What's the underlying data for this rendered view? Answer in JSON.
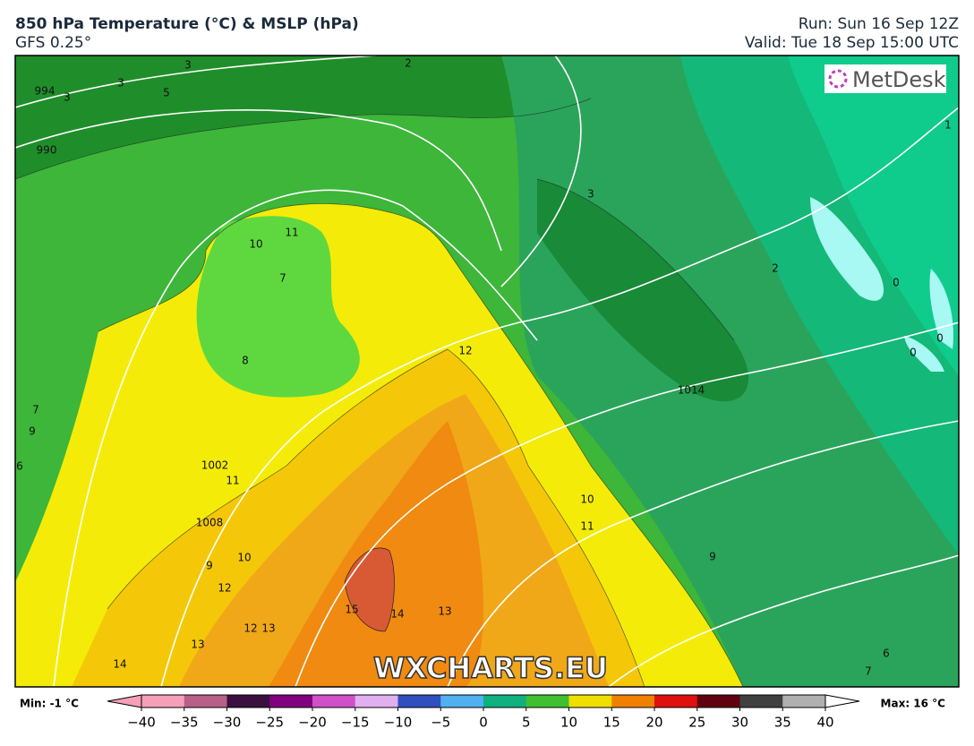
{
  "header": {
    "title": "850 hPa Temperature (°C) & MSLP (hPa)",
    "model": "GFS 0.25°",
    "run": "Run: Sun 16 Sep 12Z",
    "valid": "Valid: Tue 18 Sep 15:00 UTC"
  },
  "map": {
    "logo": "MetDesk",
    "watermark": "WXCHARTS.EU",
    "labels": [
      "994",
      "990",
      "1014",
      "1008",
      "1002",
      "3",
      "3",
      "2",
      "3",
      "5",
      "10",
      "11",
      "7",
      "8",
      "12",
      "9",
      "7",
      "6",
      "11",
      "9",
      "10",
      "12",
      "12",
      "13",
      "13",
      "14",
      "13",
      "14",
      "15",
      "10",
      "11",
      "9",
      "2",
      "3",
      "0",
      "0",
      "0",
      "1",
      "6",
      "7"
    ]
  },
  "colorbar": {
    "min": "Min: -1 °C",
    "max": "Max: 16 °C",
    "colors": [
      "#f5a0b8",
      "#b86088",
      "#3a1040",
      "#800080",
      "#d050c8",
      "#e0b0f0",
      "#3050c0",
      "#50b0f0",
      "#10b080",
      "#40c030",
      "#f0e000",
      "#f08000",
      "#e01010",
      "#600010",
      "#404040",
      "#b0b0b0"
    ],
    "ticks": [
      {
        "value": -40,
        "label": "−40"
      },
      {
        "value": -35,
        "label": "−35"
      },
      {
        "value": -30,
        "label": "−30"
      },
      {
        "value": -25,
        "label": "−25"
      },
      {
        "value": -20,
        "label": "−20"
      },
      {
        "value": -15,
        "label": "−15"
      },
      {
        "value": -10,
        "label": "−10"
      },
      {
        "value": -5,
        "label": "−5"
      },
      0,
      5,
      10,
      15,
      20,
      25,
      30,
      35,
      40
    ]
  }
}
